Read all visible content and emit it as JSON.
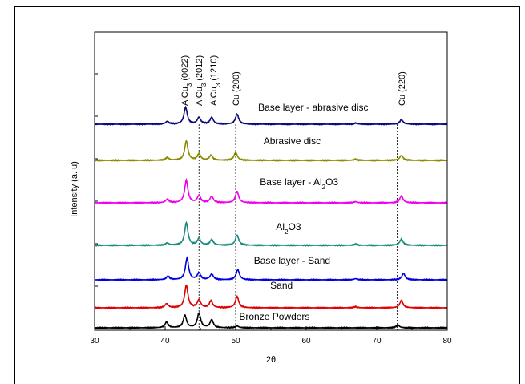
{
  "chart_data": {
    "type": "line",
    "xlabel": "2θ",
    "ylabel": "Intensity (a. u)",
    "xlim": [
      30,
      80
    ],
    "x_ticks": [
      30,
      40,
      50,
      60,
      70,
      80
    ],
    "grid": false,
    "reference_lines_x": [
      44.8,
      50.0,
      72.9
    ],
    "peak_labels": [
      {
        "text": "AlCu3 (0022)",
        "base": "AlCu",
        "sub": "3",
        "rest": " (0022)",
        "x": 42.7
      },
      {
        "text": "AlCu3 (2012)",
        "base": "AlCu",
        "sub": "3",
        "rest": " (2012)",
        "x": 44.8
      },
      {
        "text": "AlCu3 (1210)",
        "base": "AlCu",
        "sub": "3",
        "rest": " (1210)",
        "x": 46.8
      },
      {
        "text": "Cu (200)",
        "base": "Cu (200)",
        "sub": "",
        "rest": "",
        "x": 50.0
      },
      {
        "text": "Cu (220)",
        "base": "Cu (220)",
        "sub": "",
        "rest": "",
        "x": 73.5
      }
    ],
    "series": [
      {
        "name": "Bronze Powders",
        "label": {
          "base": "Bronze Powders",
          "sub": "",
          "rest": "",
          "x": 55.5
        },
        "color": "#000000",
        "peaks": [
          [
            40.2,
            0.25
          ],
          [
            42.8,
            0.55
          ],
          [
            44.8,
            0.65
          ],
          [
            46.6,
            0.35
          ],
          [
            50.2,
            0.08
          ],
          [
            73.0,
            0.12
          ]
        ]
      },
      {
        "name": "Sand",
        "label": {
          "base": "Sand",
          "sub": "",
          "rest": "",
          "x": 56.5
        },
        "color": "#e00000",
        "peaks": [
          [
            40.2,
            0.18
          ],
          [
            43.0,
            1.0
          ],
          [
            44.8,
            0.35
          ],
          [
            46.5,
            0.3
          ],
          [
            50.2,
            0.5
          ],
          [
            67.0,
            0.05
          ],
          [
            73.5,
            0.32
          ]
        ]
      },
      {
        "name": "Base layer - Sand",
        "label": {
          "base": "Base  layer - Sand",
          "sub": "",
          "rest": "",
          "x": 58.0
        },
        "color": "#0000dd",
        "peaks": [
          [
            40.4,
            0.15
          ],
          [
            43.1,
            0.95
          ],
          [
            44.8,
            0.3
          ],
          [
            46.6,
            0.25
          ],
          [
            50.3,
            0.45
          ],
          [
            67.0,
            0.05
          ],
          [
            73.8,
            0.28
          ]
        ]
      },
      {
        "name": "Al2O3",
        "label": {
          "base": "Al",
          "sub": "2",
          "rest": "O3",
          "x": 57.5
        },
        "color": "#1a8a80",
        "peaks": [
          [
            40.3,
            0.1
          ],
          [
            43.0,
            1.0
          ],
          [
            44.8,
            0.3
          ],
          [
            46.6,
            0.25
          ],
          [
            50.2,
            0.45
          ],
          [
            67.0,
            0.05
          ],
          [
            73.5,
            0.28
          ]
        ]
      },
      {
        "name": "Base layer - Al2O3",
        "label": {
          "base": "Base layer - Al",
          "sub": "2",
          "rest": "O3",
          "x": 59.0
        },
        "color": "#ee00ee",
        "peaks": [
          [
            40.3,
            0.15
          ],
          [
            43.0,
            1.0
          ],
          [
            44.8,
            0.32
          ],
          [
            46.6,
            0.28
          ],
          [
            50.2,
            0.5
          ],
          [
            67.0,
            0.05
          ],
          [
            73.5,
            0.3
          ]
        ]
      },
      {
        "name": "Abrasive disc",
        "label": {
          "base": "Abrasive disc",
          "sub": "",
          "rest": "",
          "x": 58.0
        },
        "color": "#8a8a00",
        "peaks": [
          [
            40.3,
            0.12
          ],
          [
            43.0,
            0.85
          ],
          [
            44.8,
            0.28
          ],
          [
            46.5,
            0.22
          ],
          [
            50.0,
            0.35
          ],
          [
            67.0,
            0.05
          ],
          [
            73.5,
            0.22
          ]
        ]
      },
      {
        "name": "Base layer - abrasive disc",
        "label": {
          "base": "Base layer - abrasive disc",
          "sub": "",
          "rest": "",
          "x": 61.0
        },
        "color": "#0a0a7a",
        "peaks": [
          [
            40.3,
            0.12
          ],
          [
            42.9,
            0.75
          ],
          [
            44.8,
            0.3
          ],
          [
            46.6,
            0.3
          ],
          [
            50.2,
            0.45
          ],
          [
            67.0,
            0.05
          ],
          [
            73.5,
            0.2
          ]
        ]
      }
    ]
  }
}
